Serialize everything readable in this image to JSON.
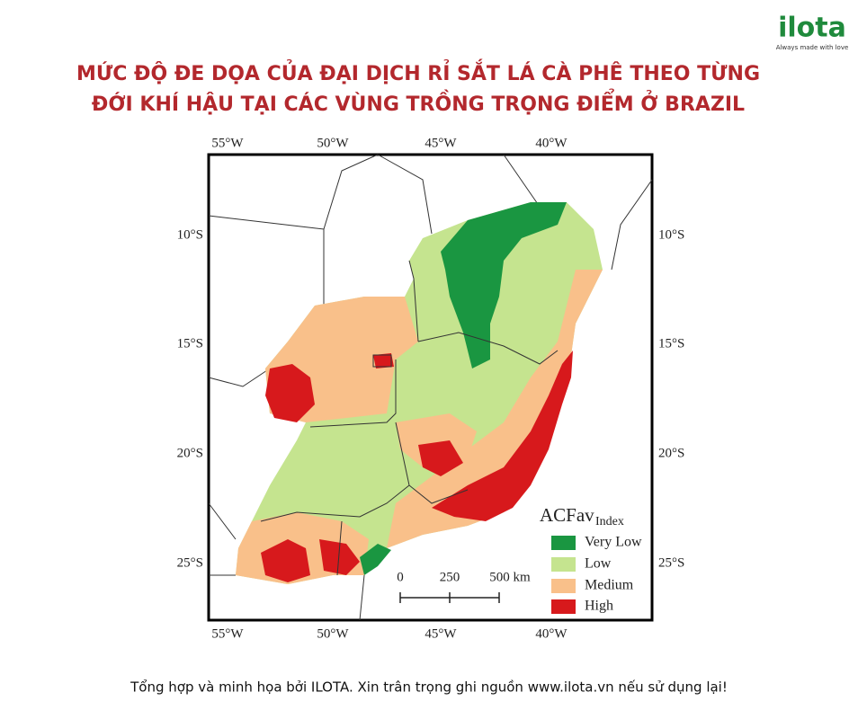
{
  "logo": {
    "name": "ilota",
    "tagline": "Always made with love"
  },
  "title": [
    "MỨC ĐỘ ĐE DỌA CỦA ĐẠI DỊCH RỈ SẮT LÁ CÀ PHÊ THEO TỪNG",
    "ĐỚI KHÍ HẬU TẠI CÁC VÙNG TRỒNG TRỌNG ĐIỂM Ở BRAZIL"
  ],
  "map": {
    "longitude_labels": [
      "55°W",
      "50°W",
      "45°W",
      "40°W"
    ],
    "latitude_labels": [
      "10°S",
      "15°S",
      "20°S",
      "25°S"
    ],
    "legend": {
      "title": "ACFav",
      "title_subscript": "Index",
      "items": [
        "Very Low",
        "Low",
        "Medium",
        "High"
      ]
    },
    "scale_bar": [
      "0",
      "250",
      "500 km"
    ]
  },
  "footer": "Tổng hợp và minh họa bởi ILOTA. Xin trân trọng ghi nguồn www.ilota.vn nếu sử dụng lại!"
}
